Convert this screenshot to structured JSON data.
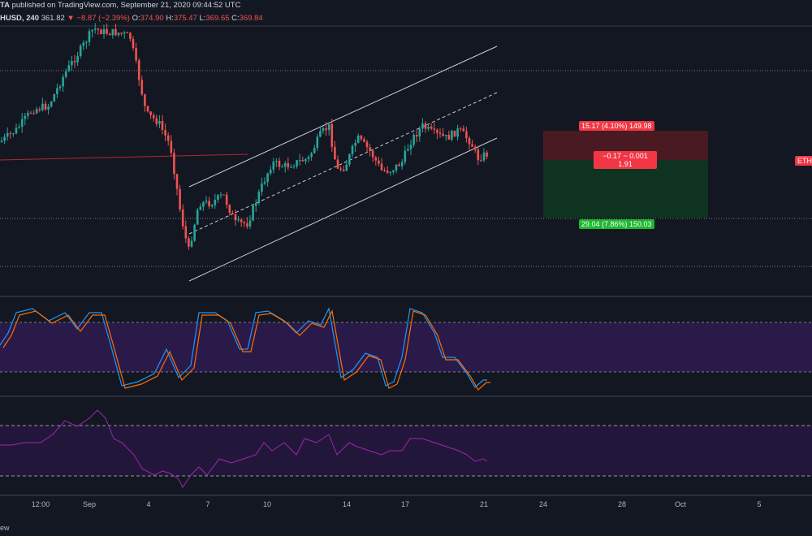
{
  "header": {
    "author_suffix": "TA",
    "published_text": "published on TradingView.com, September 21, 2020 09:44:52 UTC",
    "symbol": "HUSD, 240",
    "close_value": "361.82",
    "change": "▼ −8.87 (−2.39%)",
    "o_label": "O:",
    "o_value": "374.90",
    "h_label": "H:",
    "h_value": "375.47",
    "l_label": "L:",
    "l_value": "369.65",
    "c_label": "C:",
    "c_value": "369.84"
  },
  "position": {
    "stop_label": "15.17 (4.10%) 149.98",
    "center_label_line1": "−0.17 ~ 0.001",
    "center_label_line2": "1.91",
    "target_label": "29.04 (7.86%) 150.03",
    "stop_color": "#f23645",
    "target_color": "#089981"
  },
  "price_tag": "ETH",
  "x_axis": [
    "12:00",
    "Sep",
    "4",
    "7",
    "10",
    "14",
    "17",
    "21",
    "24",
    "28",
    "Oct",
    "5"
  ],
  "footer_text": "ew",
  "colors": {
    "background": "#131722",
    "up_candle": "#26a69a",
    "down_candle": "#ef5350",
    "stoch_k": "#2196f3",
    "stoch_d": "#ff6d00",
    "rsi": "#9c27b0",
    "band": "#7e57c2"
  }
}
